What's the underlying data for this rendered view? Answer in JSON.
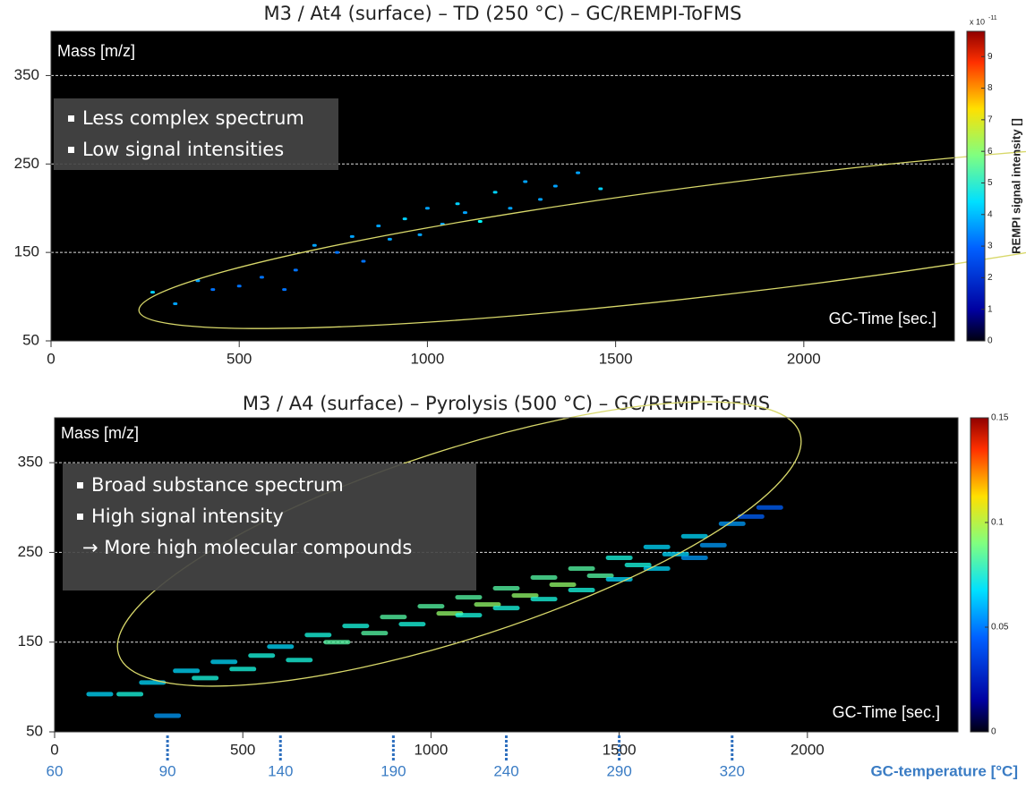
{
  "chart_data": [
    {
      "type": "heatmap",
      "title": "M3 / At4 (surface) – TD (250 °C) – GC/REMPI-ToFMS",
      "y_label": "Mass [m/z]",
      "x_label": "GC-Time [sec.]",
      "xlim": [
        0,
        2400
      ],
      "xticks": [
        0,
        500,
        1000,
        1500,
        2000
      ],
      "ylim": [
        50,
        400
      ],
      "yticks": [
        50,
        150,
        250,
        350
      ],
      "grid": true,
      "annotations": [
        "Less complex spectrum",
        "Low signal intensities"
      ],
      "colorbar_label": "REMPI signal intensity []",
      "colorbar_scale": "x 10",
      "colorbar_exponent": "-11",
      "clim": [
        0,
        9.8
      ],
      "cticks": [
        0,
        1,
        2,
        3,
        4,
        5,
        6,
        7,
        8,
        9
      ],
      "points": {
        "x": [
          270,
          330,
          390,
          430,
          500,
          560,
          620,
          650,
          700,
          760,
          800,
          830,
          870,
          900,
          940,
          980,
          1000,
          1040,
          1080,
          1100,
          1140,
          1180,
          1220,
          1260,
          1300,
          1340,
          1400,
          1460
        ],
        "y": [
          105,
          92,
          118,
          108,
          112,
          122,
          108,
          130,
          158,
          150,
          168,
          140,
          180,
          165,
          188,
          170,
          200,
          182,
          205,
          195,
          185,
          218,
          200,
          230,
          210,
          225,
          240,
          222
        ],
        "intensity": [
          2.5,
          2,
          2,
          1.5,
          1.5,
          1.5,
          1.5,
          1.5,
          2,
          1.5,
          2,
          1.5,
          2,
          2,
          2.5,
          2,
          2,
          2,
          2.5,
          2,
          3,
          2.5,
          2,
          2,
          2,
          2,
          2,
          2.5
        ]
      }
    },
    {
      "type": "heatmap",
      "title": "M3 / A4 (surface) – Pyrolysis (500 °C) – GC/REMPI-ToFMS",
      "y_label": "Mass [m/z]",
      "x_label": "GC-Time [sec.]",
      "xlim": [
        0,
        2400
      ],
      "xticks": [
        0,
        500,
        1000,
        1500,
        2000
      ],
      "ylim": [
        50,
        400
      ],
      "yticks": [
        50,
        150,
        250,
        350
      ],
      "grid": true,
      "annotations": [
        "Broad substance spectrum",
        "High signal intensity",
        "→ More high molecular compounds"
      ],
      "clim": [
        0,
        0.15
      ],
      "cticks": [
        0,
        0.05,
        0.1,
        0.15
      ],
      "temperature_axis": {
        "label": "GC-temperature [°C]",
        "ticks": [
          60,
          90,
          140,
          190,
          240,
          290,
          320
        ],
        "at_time": [
          0,
          300,
          600,
          900,
          1200,
          1500,
          1800
        ]
      },
      "points": {
        "x": [
          120,
          200,
          260,
          300,
          350,
          400,
          450,
          500,
          550,
          600,
          650,
          700,
          750,
          800,
          850,
          900,
          950,
          1000,
          1050,
          1100,
          1150,
          1200,
          1250,
          1300,
          1350,
          1400,
          1450,
          1500,
          1550,
          1600,
          1650,
          1700,
          1750,
          1800,
          1850,
          1900,
          1300,
          1400,
          1500,
          1600,
          1700,
          1200,
          1100
        ],
        "y": [
          92,
          92,
          105,
          68,
          118,
          110,
          128,
          120,
          135,
          145,
          130,
          158,
          150,
          168,
          160,
          178,
          170,
          190,
          182,
          200,
          192,
          210,
          202,
          222,
          214,
          232,
          224,
          244,
          236,
          256,
          248,
          268,
          258,
          282,
          290,
          300,
          198,
          208,
          220,
          232,
          244,
          188,
          180
        ],
        "intensity": [
          0.04,
          0.05,
          0.04,
          0.03,
          0.04,
          0.05,
          0.04,
          0.05,
          0.05,
          0.04,
          0.05,
          0.05,
          0.06,
          0.05,
          0.06,
          0.06,
          0.05,
          0.06,
          0.07,
          0.06,
          0.07,
          0.06,
          0.07,
          0.06,
          0.07,
          0.06,
          0.06,
          0.05,
          0.05,
          0.04,
          0.04,
          0.04,
          0.03,
          0.03,
          0.02,
          0.02,
          0.05,
          0.05,
          0.04,
          0.04,
          0.03,
          0.05,
          0.05
        ]
      }
    }
  ]
}
